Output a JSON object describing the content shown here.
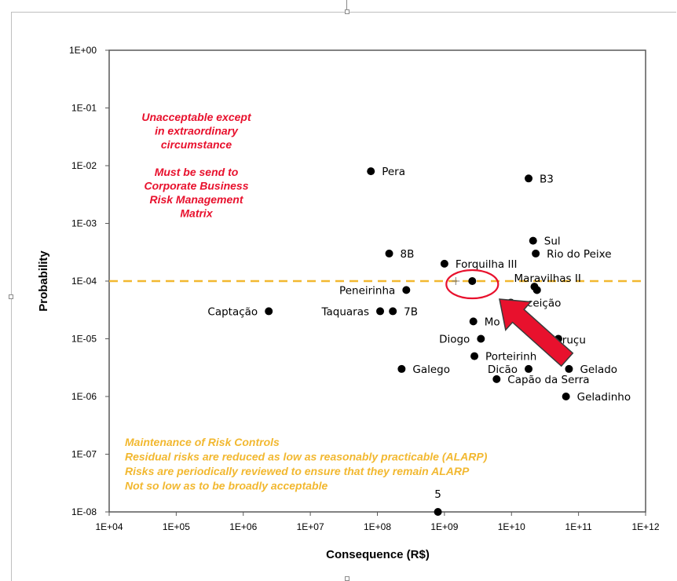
{
  "chart_data": {
    "type": "scatter",
    "xlabel": "Consequence (R$)",
    "ylabel": "Probability",
    "x_scale": "log",
    "y_scale": "log",
    "xlim": [
      10000,
      1000000000000
    ],
    "ylim": [
      1e-08,
      1
    ],
    "x_ticks": [
      {
        "value": 10000,
        "label": "1E+04"
      },
      {
        "value": 100000,
        "label": "1E+05"
      },
      {
        "value": 1000000,
        "label": "1E+06"
      },
      {
        "value": 10000000,
        "label": "1E+07"
      },
      {
        "value": 100000000,
        "label": "1E+08"
      },
      {
        "value": 1000000000,
        "label": "1E+09"
      },
      {
        "value": 10000000000,
        "label": "1E+10"
      },
      {
        "value": 100000000000,
        "label": "1E+11"
      },
      {
        "value": 1000000000000,
        "label": "1E+12"
      }
    ],
    "y_ticks": [
      {
        "value": 1,
        "label": "1E+00"
      },
      {
        "value": 0.1,
        "label": "1E-01"
      },
      {
        "value": 0.01,
        "label": "1E-02"
      },
      {
        "value": 0.001,
        "label": "1E-03"
      },
      {
        "value": 0.0001,
        "label": "1E-04"
      },
      {
        "value": 1e-05,
        "label": "1E-05"
      },
      {
        "value": 1e-06,
        "label": "1E-06"
      },
      {
        "value": 1e-07,
        "label": "1E-07"
      },
      {
        "value": 1e-08,
        "label": "1E-08"
      }
    ],
    "grid": false,
    "points": [
      {
        "name": "Pera",
        "x": 80000000,
        "y": 0.008,
        "label_side": "right"
      },
      {
        "name": "B3",
        "x": 18000000000,
        "y": 0.006,
        "label_side": "right"
      },
      {
        "name": "Sul",
        "x": 21000000000,
        "y": 0.0005,
        "label_side": "right"
      },
      {
        "name": "Rio do Peixe",
        "x": 23000000000,
        "y": 0.0003,
        "label_side": "right"
      },
      {
        "name": "8B",
        "x": 150000000,
        "y": 0.0003,
        "label_side": "right"
      },
      {
        "name": "Forquilha III",
        "x": 1000000000,
        "y": 0.0002,
        "label_side": "right"
      },
      {
        "name": "Maravilhas II",
        "x": 22000000000,
        "y": 8e-05,
        "label_side": "above-left"
      },
      {
        "name": "",
        "x": 24000000000,
        "y": 7e-05,
        "label_side": "none"
      },
      {
        "name": "",
        "x": 2600000000,
        "y": 0.0001,
        "label_side": "none"
      },
      {
        "name": "Peneirinha",
        "x": 270000000,
        "y": 7e-05,
        "label_side": "left"
      },
      {
        "name": "Conceição",
        "x": 24000000000,
        "y": 7e-05,
        "label_side": "below-left"
      },
      {
        "name": "Captação",
        "x": 2400000,
        "y": 3e-05,
        "label_side": "left"
      },
      {
        "name": "Taquaras",
        "x": 110000000,
        "y": 3e-05,
        "label_side": "left"
      },
      {
        "name": "7B",
        "x": 170000000,
        "y": 3e-05,
        "label_side": "right"
      },
      {
        "name": "Mo",
        "x": 2700000000,
        "y": 2e-05,
        "label_side": "right"
      },
      {
        "name": "Diogo",
        "x": 3500000000,
        "y": 1e-05,
        "label_side": "left"
      },
      {
        "name": "Itabiruçu",
        "x": 50000000000,
        "y": 1e-05,
        "label_side": "none-left"
      },
      {
        "name": "Porteirinh",
        "x": 2800000000,
        "y": 5e-06,
        "label_side": "right"
      },
      {
        "name": "Galego",
        "x": 230000000,
        "y": 3e-06,
        "label_side": "right"
      },
      {
        "name": "Dicão",
        "x": 18000000000,
        "y": 3e-06,
        "label_side": "left"
      },
      {
        "name": "Gelado",
        "x": 72000000000,
        "y": 3e-06,
        "label_side": "right"
      },
      {
        "name": "Capão da Serra",
        "x": 6000000000,
        "y": 2e-06,
        "label_side": "right"
      },
      {
        "name": "Geladinho",
        "x": 65000000000,
        "y": 1e-06,
        "label_side": "right"
      },
      {
        "name": "5",
        "x": 800000000,
        "y": 1e-08,
        "label_side": "above"
      }
    ],
    "threshold_line": {
      "y": 0.0001,
      "color": "#f2b830",
      "style": "dashed"
    },
    "highlight": {
      "circle_around_x": 2600000000,
      "circle_around_y": 0.0001,
      "circle_color": "#e8112d",
      "arrow_color": "#e8112d"
    },
    "annotations": {
      "red_lines": [
        "Unacceptable except",
        "in extraordinary",
        "circumstance",
        "",
        "Must be send to",
        "Corporate Business",
        "Risk Management",
        "Matrix"
      ],
      "yellow_lines": [
        "Maintenance of Risk Controls",
        "Residual risks are reduced as low as reasonably practicable (ALARP)",
        "Risks are periodically reviewed to ensure that they remain ALARP",
        "Not so low as to be broadly acceptable"
      ]
    }
  }
}
